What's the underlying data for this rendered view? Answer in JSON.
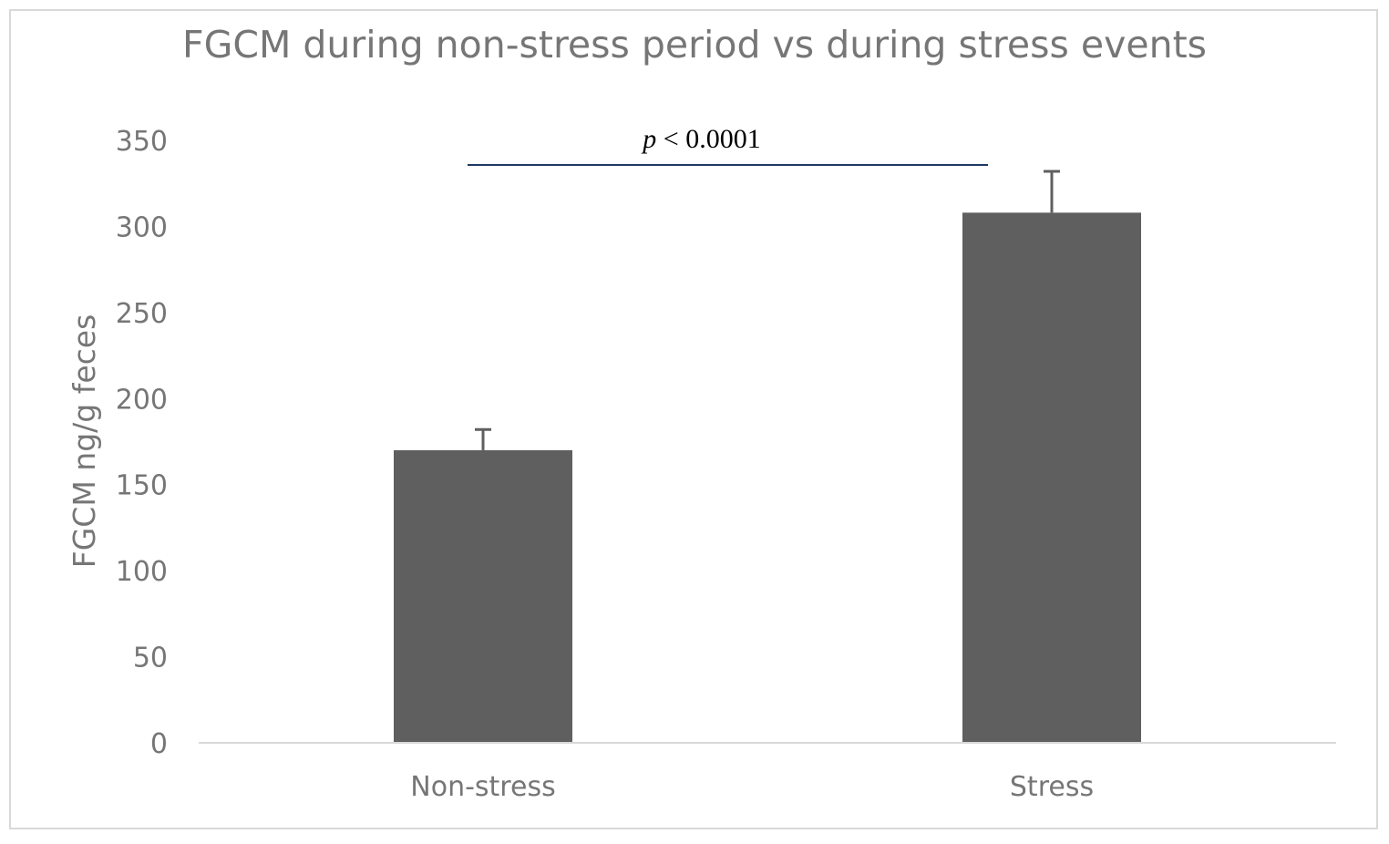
{
  "chart_data": {
    "type": "bar",
    "title": "FGCM during non-stress period vs during stress events",
    "xlabel": "",
    "ylabel": "FGCM ng/g feces",
    "categories": [
      "Non-stress",
      "Stress"
    ],
    "values": [
      170,
      308
    ],
    "error_upper": [
      12,
      24
    ],
    "ylim": [
      0,
      350
    ],
    "yticks": [
      0,
      50,
      100,
      150,
      200,
      250,
      300,
      350
    ],
    "ytick_labels": [
      "0",
      "50",
      "100",
      "150",
      "200",
      "250",
      "300",
      "350"
    ],
    "grid": false,
    "legend": "none",
    "bar_color": "#5f5f5f",
    "annotation": {
      "italic": "p",
      "rest": " < 0.0001",
      "line_color": "#1f3864"
    }
  }
}
